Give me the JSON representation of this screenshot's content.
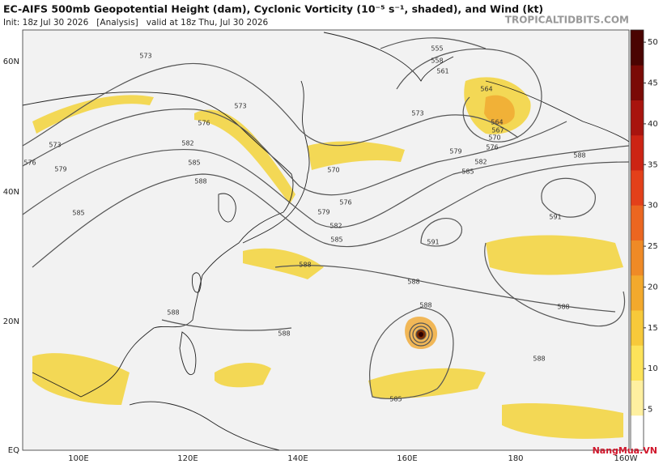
{
  "header": {
    "title": "EC-AIFS 500mb Geopotential Height (dam), Cyclonic Vorticity (10⁻⁵ s⁻¹, shaded), and Wind (kt)",
    "subtitle": "Init: 18z Jul 30 2026   [Analysis]   valid at 18z Thu, Jul 30 2026",
    "source": "TROPICALTIDBITS.COM"
  },
  "map": {
    "longitude_labels": [
      "100E",
      "120E",
      "140E",
      "160E",
      "180",
      "160W"
    ],
    "latitude_labels": [
      "60N",
      "40N",
      "20N",
      "EQ"
    ],
    "contour_labels": [
      "573",
      "573",
      "576",
      "582",
      "585",
      "588",
      "573",
      "576",
      "579",
      "585",
      "555",
      "558",
      "561",
      "564",
      "564",
      "567",
      "570",
      "573",
      "576",
      "579",
      "582",
      "585",
      "588",
      "570",
      "576",
      "579",
      "582",
      "585",
      "591",
      "591",
      "588",
      "588",
      "588",
      "588",
      "588",
      "588",
      "588",
      "585"
    ]
  },
  "colorbar": {
    "ticks": [
      5,
      10,
      15,
      20,
      25,
      30,
      35,
      40,
      45,
      50
    ],
    "range": [
      0,
      51.5
    ]
  },
  "watermark": "NangMua.VN"
}
